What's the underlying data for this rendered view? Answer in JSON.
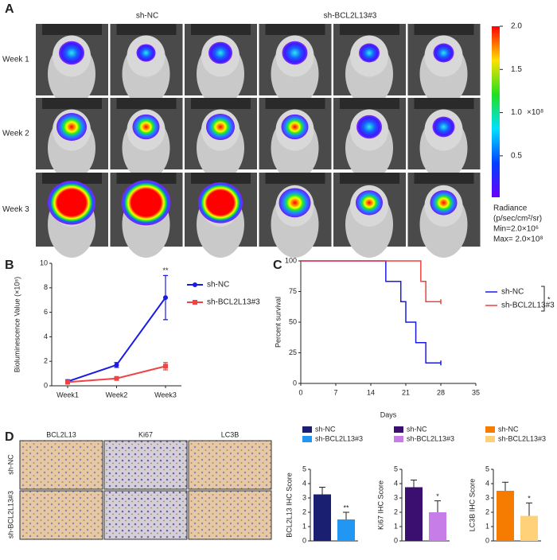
{
  "panel_a": {
    "label": "A",
    "groups": [
      "sh-NC",
      "sh-BCL2L13#3"
    ],
    "rows": [
      "Week 1",
      "Week 2",
      "Week 3"
    ],
    "colorbar": {
      "lim": [
        0.02,
        2.0
      ],
      "ticks": [
        {
          "value": 2,
          "label": "2.0"
        },
        {
          "value": 1.5,
          "label": "1.5"
        },
        {
          "value": 1,
          "label": "1.0"
        },
        {
          "value": 0.5,
          "label": "0.5"
        }
      ],
      "unit": "×10⁸",
      "notes": [
        "Radiance",
        "(p/sec/cm²/sr)",
        "Min=2.0×10⁶",
        "Max= 2.0×10⁸"
      ]
    }
  },
  "panel_d": {
    "label": "D",
    "columns": [
      "BCL2L13",
      "Ki67",
      "LC3B"
    ],
    "rows": [
      "sh-NC",
      "sh-BCL2L13#3"
    ]
  },
  "chart_data": [
    {
      "label": "B",
      "type": "line",
      "categories": [
        "Week1",
        "Week2",
        "Week3"
      ],
      "ylabel": "Bioluminescence Value (×10⁸)",
      "ylim": [
        0,
        10
      ],
      "yticks": [
        0,
        2,
        4,
        6,
        8,
        10
      ],
      "annotation": "**",
      "series": [
        {
          "name": "sh-NC",
          "color": "#1a1ae6",
          "values": [
            0.35,
            1.7,
            7.2
          ],
          "errors": [
            0.15,
            0.2,
            1.8
          ]
        },
        {
          "name": "sh-BCL2L13#3",
          "color": "#ee4444",
          "values": [
            0.3,
            0.6,
            1.6
          ],
          "errors": [
            0.1,
            0.1,
            0.3
          ]
        }
      ]
    },
    {
      "label": "C",
      "type": "step",
      "xlabel": "Days",
      "ylabel": "Percent survival",
      "xlim": [
        0,
        35
      ],
      "xticks": [
        0,
        7,
        14,
        21,
        28,
        35
      ],
      "ylim": [
        0,
        100
      ],
      "yticks": [
        0,
        25,
        50,
        75,
        100
      ],
      "annotation": "*",
      "series": [
        {
          "name": "sh-NC",
          "color": "#1a1ae6",
          "x": [
            0,
            17,
            20,
            21,
            23,
            25,
            28
          ],
          "values": [
            100,
            83.3,
            66.7,
            50,
            33.3,
            16.7,
            16.7
          ]
        },
        {
          "name": "sh-BCL2L13#3",
          "color": "#f04040",
          "x": [
            0,
            24,
            25,
            28
          ],
          "values": [
            100,
            83.3,
            66.7,
            66.7
          ]
        }
      ]
    },
    {
      "type": "bar",
      "categories": [
        "sh-NC",
        "sh-BCL2L13#3"
      ],
      "colors": [
        "#1a1f71",
        "#2196f3"
      ],
      "ylabel": "BCL2L13 IHC Score",
      "ylim": [
        0,
        5
      ],
      "yticks": [
        0,
        1,
        2,
        3,
        4,
        5
      ],
      "values": [
        3.25,
        1.5
      ],
      "errors": [
        0.5,
        0.5
      ],
      "annotation": "**"
    },
    {
      "type": "bar",
      "categories": [
        "sh-NC",
        "sh-BCL2L13#3"
      ],
      "colors": [
        "#3b0f70",
        "#c77de8"
      ],
      "ylabel": "Ki67 IHC Score",
      "ylim": [
        0,
        5
      ],
      "yticks": [
        0,
        1,
        2,
        3,
        4,
        5
      ],
      "values": [
        3.75,
        2.0
      ],
      "errors": [
        0.5,
        0.8
      ],
      "annotation": "*"
    },
    {
      "type": "bar",
      "categories": [
        "sh-NC",
        "sh-BCL2L13#3"
      ],
      "colors": [
        "#f57c00",
        "#ffd27a"
      ],
      "ylabel": "LC3B IHC Score",
      "ylim": [
        0,
        5
      ],
      "yticks": [
        0,
        1,
        2,
        3,
        4,
        5
      ],
      "values": [
        3.5,
        1.75
      ],
      "errors": [
        0.6,
        0.9
      ],
      "annotation": "*"
    }
  ]
}
